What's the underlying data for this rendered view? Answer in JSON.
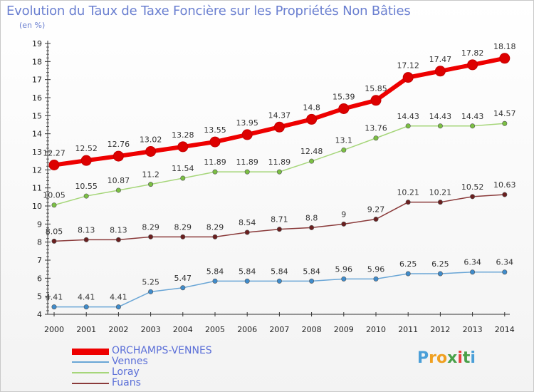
{
  "title": "Evolution du Taux de Taxe Foncière sur les Propriétés Non Bâties",
  "subtitle": "(en %)",
  "logo": {
    "text": "Proxiti",
    "colors": [
      "#4a9fd8",
      "#f0a020",
      "#f0a020",
      "#4aa04a",
      "#e84040",
      "#4aa04a",
      "#4a9fd8"
    ]
  },
  "chart_data": {
    "type": "line",
    "title": "Evolution du Taux de Taxe Foncière sur les Propriétés Non Bâties",
    "ylabel": "(en %)",
    "x": [
      "2000",
      "2001",
      "2002",
      "2003",
      "2004",
      "2005",
      "2006",
      "2007",
      "2008",
      "2009",
      "2010",
      "2011",
      "2012",
      "2013",
      "2014"
    ],
    "ylim": [
      4,
      19
    ],
    "yticks": [
      "4",
      "5",
      "6",
      "7",
      "8",
      "9",
      "10",
      "11",
      "12",
      "13",
      "14",
      "15",
      "16",
      "17",
      "18",
      "19"
    ],
    "grid": false,
    "legend": "bottom-left",
    "series": [
      {
        "name": "ORCHAMPS-VENNES",
        "color": "#ee0000",
        "point_color": "#dd0000",
        "thick": true,
        "values": [
          12.27,
          12.52,
          12.76,
          13.02,
          13.28,
          13.55,
          13.95,
          14.37,
          14.8,
          15.39,
          15.85,
          17.12,
          17.47,
          17.82,
          18.18
        ],
        "labels": [
          "12.27",
          "12.52",
          "12.76",
          "13.02",
          "13.28",
          "13.55",
          "13.95",
          "14.37",
          "14.8",
          "15.39",
          "15.85",
          "17.12",
          "17.47",
          "17.82",
          "18.18"
        ]
      },
      {
        "name": "Vennes",
        "color": "#6aa6d6",
        "point_color": "#3f8ccc",
        "thick": false,
        "values": [
          4.41,
          4.41,
          4.41,
          5.25,
          5.47,
          5.84,
          5.84,
          5.84,
          5.84,
          5.96,
          5.96,
          6.25,
          6.25,
          6.34,
          6.34
        ],
        "labels": [
          "4.41",
          "4.41",
          "4.41",
          "5.25",
          "5.47",
          "5.84",
          "5.84",
          "5.84",
          "5.84",
          "5.96",
          "5.96",
          "6.25",
          "6.25",
          "6.34",
          "6.34"
        ]
      },
      {
        "name": "Loray",
        "color": "#a6d67a",
        "point_color": "#7bc043",
        "thick": false,
        "values": [
          10.05,
          10.55,
          10.87,
          11.2,
          11.54,
          11.89,
          11.89,
          11.89,
          12.48,
          13.1,
          13.76,
          14.43,
          14.43,
          14.43,
          14.57
        ],
        "labels": [
          "10.05",
          "10.55",
          "10.87",
          "11.2",
          "11.54",
          "11.89",
          "11.89",
          "11.89",
          "12.48",
          "13.1",
          "13.76",
          "14.43",
          "14.43",
          "14.43",
          "14.57"
        ]
      },
      {
        "name": "Fuans",
        "color": "#8a3a3a",
        "point_color": "#6a1f1f",
        "thick": false,
        "values": [
          8.05,
          8.13,
          8.13,
          8.29,
          8.29,
          8.29,
          8.54,
          8.71,
          8.8,
          9,
          9.27,
          10.21,
          10.21,
          10.52,
          10.63
        ],
        "labels": [
          "8.05",
          "8.13",
          "8.13",
          "8.29",
          "8.29",
          "8.29",
          "8.54",
          "8.71",
          "8.8",
          "9",
          "9.27",
          "10.21",
          "10.21",
          "10.52",
          "10.63"
        ]
      }
    ]
  },
  "legend": {
    "items": [
      {
        "name": "ORCHAMPS-VENNES",
        "color": "#ee0000",
        "thick": true
      },
      {
        "name": "Vennes",
        "color": "#6aa6d6",
        "thick": false
      },
      {
        "name": "Loray",
        "color": "#a6d67a",
        "thick": false
      },
      {
        "name": "Fuans",
        "color": "#8a3a3a",
        "thick": false
      }
    ]
  }
}
